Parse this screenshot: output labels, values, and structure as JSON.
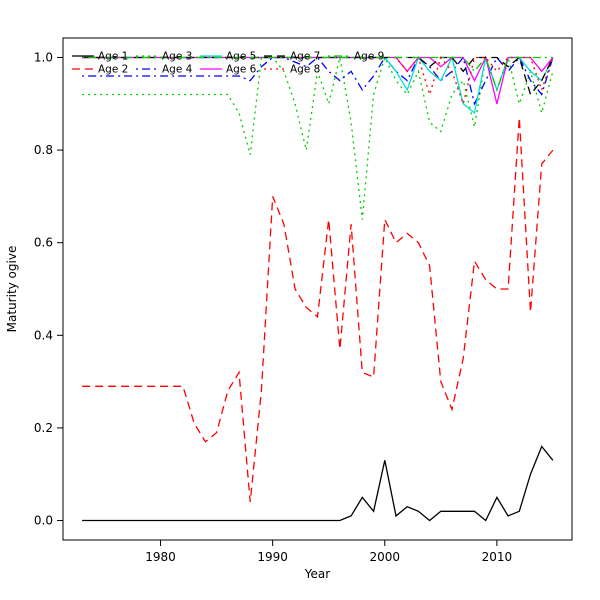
{
  "chart_data": {
    "type": "line",
    "title": "",
    "xlabel": "Year",
    "ylabel": "Maturity ogive",
    "xlim": [
      1971.3,
      2016.7
    ],
    "ylim": [
      -0.042,
      1.042
    ],
    "xticks": [
      1980,
      1990,
      2000,
      2010
    ],
    "yticks": [
      0.0,
      0.2,
      0.4,
      0.6,
      0.8,
      1.0
    ],
    "ytick_labels": [
      "0.0",
      "0.2",
      "0.4",
      "0.6",
      "0.8",
      "1.0"
    ],
    "grid": false,
    "legend": {
      "position": "top-left-inside",
      "columns": 5,
      "rows": 2,
      "layout": "column-major"
    },
    "x": [
      1973,
      1974,
      1975,
      1976,
      1977,
      1978,
      1979,
      1980,
      1981,
      1982,
      1983,
      1984,
      1985,
      1986,
      1987,
      1988,
      1989,
      1990,
      1991,
      1992,
      1993,
      1994,
      1995,
      1996,
      1997,
      1998,
      1999,
      2000,
      2001,
      2002,
      2003,
      2004,
      2005,
      2006,
      2007,
      2008,
      2009,
      2010,
      2011,
      2012,
      2013,
      2014,
      2015
    ],
    "series": [
      {
        "name": "Age 1",
        "color": "#000000",
        "lty": "solid",
        "values": [
          0,
          0,
          0,
          0,
          0,
          0,
          0,
          0,
          0,
          0,
          0,
          0,
          0,
          0,
          0,
          0,
          0,
          0,
          0,
          0,
          0,
          0,
          0,
          0,
          0.01,
          0.05,
          0.02,
          0.13,
          0.01,
          0.03,
          0.02,
          0,
          0.02,
          0.02,
          0.02,
          0.02,
          0,
          0.05,
          0.01,
          0.02,
          0.1,
          0.16,
          0.13
        ]
      },
      {
        "name": "Age 2",
        "color": "#FF0000",
        "lty": "dashed",
        "values": [
          0.29,
          0.29,
          0.29,
          0.29,
          0.29,
          0.29,
          0.29,
          0.29,
          0.29,
          0.29,
          0.21,
          0.17,
          0.19,
          0.28,
          0.32,
          0.04,
          0.28,
          0.7,
          0.64,
          0.5,
          0.46,
          0.44,
          0.65,
          0.37,
          0.64,
          0.32,
          0.31,
          0.65,
          0.6,
          0.62,
          0.6,
          0.55,
          0.3,
          0.24,
          0.35,
          0.56,
          0.52,
          0.5,
          0.5,
          0.87,
          0.45,
          0.77,
          0.8
        ]
      },
      {
        "name": "Age 3",
        "color": "#00CC00",
        "lty": "dotted",
        "values": [
          0.92,
          0.92,
          0.92,
          0.92,
          0.92,
          0.92,
          0.92,
          0.92,
          0.92,
          0.92,
          0.92,
          0.92,
          0.92,
          0.92,
          0.88,
          0.79,
          1.0,
          1.0,
          0.97,
          0.9,
          0.8,
          0.97,
          0.9,
          1.0,
          0.86,
          0.65,
          0.92,
          1.0,
          0.95,
          0.92,
          0.97,
          0.86,
          0.84,
          0.92,
          0.95,
          0.85,
          1.0,
          0.93,
          1.0,
          0.9,
          0.97,
          0.88,
          0.97
        ]
      },
      {
        "name": "Age 4",
        "color": "#0000FF",
        "lty": "dashdot",
        "values": [
          0.96,
          0.96,
          0.96,
          0.96,
          0.96,
          0.96,
          0.96,
          0.96,
          0.96,
          0.96,
          0.96,
          0.96,
          0.96,
          0.96,
          0.96,
          0.95,
          0.98,
          1.0,
          1.0,
          0.99,
          0.98,
          1.0,
          0.97,
          0.95,
          0.97,
          0.93,
          0.96,
          1.0,
          0.97,
          0.95,
          1.0,
          0.98,
          0.95,
          0.97,
          1.0,
          0.9,
          0.95,
          1.0,
          0.97,
          1.0,
          0.95,
          0.92,
          1.0
        ]
      },
      {
        "name": "Age 5",
        "color": "#00DDDD",
        "lty": "solid",
        "values": [
          1,
          1,
          1,
          1,
          1,
          1,
          1,
          1,
          1,
          1,
          1,
          1,
          1,
          1,
          1,
          1,
          1,
          1,
          1,
          1,
          1,
          1,
          1,
          1,
          1,
          1,
          1,
          1.0,
          0.97,
          0.93,
          1.0,
          0.97,
          0.95,
          1.0,
          0.9,
          0.88,
          1.0,
          0.93,
          1.0,
          1.0,
          0.97,
          0.95,
          1.0
        ]
      },
      {
        "name": "Age 6",
        "color": "#FF00FF",
        "lty": "solid",
        "values": [
          1,
          1,
          1,
          1,
          1,
          1,
          1,
          1,
          1,
          1,
          1,
          1,
          1,
          1,
          1,
          1,
          1,
          1,
          1,
          1,
          1,
          1,
          1,
          1,
          1,
          1,
          1,
          1,
          1.0,
          0.97,
          1.0,
          1.0,
          0.98,
          1.0,
          1.0,
          0.95,
          1.0,
          0.9,
          1.0,
          1.0,
          1.0,
          0.97,
          1.0
        ]
      },
      {
        "name": "Age 7",
        "color": "#000000",
        "lty": "dashed",
        "values": [
          1,
          1,
          1,
          1,
          1,
          1,
          1,
          1,
          1,
          1,
          1,
          1,
          1,
          1,
          1,
          1,
          1,
          1,
          1,
          1,
          1,
          1,
          1,
          1,
          1,
          1,
          1,
          1,
          1,
          1,
          1,
          0.98,
          1.0,
          1.0,
          0.97,
          1.0,
          1.0,
          1.0,
          0.98,
          1.0,
          0.92,
          0.95,
          1.0
        ]
      },
      {
        "name": "Age 8",
        "color": "#FF0000",
        "lty": "dotted",
        "values": [
          1,
          1,
          1,
          1,
          1,
          1,
          1,
          1,
          1,
          1,
          1,
          1,
          1,
          1,
          1,
          1,
          1,
          1,
          1,
          1,
          1,
          1,
          1,
          1,
          1,
          1,
          1,
          1,
          1,
          0.97,
          1.0,
          0.92,
          1.0,
          0.97,
          0.9,
          1.0,
          1.0,
          0.97,
          1.0,
          1.0,
          1.0,
          0.93,
          1.0
        ]
      },
      {
        "name": "Age 9",
        "color": "#00CC00",
        "lty": "dashdot",
        "values": [
          1,
          1,
          1,
          1,
          1,
          1,
          1,
          1,
          1,
          1,
          1,
          1,
          1,
          1,
          1,
          1,
          1,
          1,
          1,
          1,
          1,
          1,
          1,
          1,
          1,
          1,
          1,
          1,
          1,
          1,
          1,
          1,
          1,
          1,
          1,
          0.97,
          1.0,
          0.93,
          1.0,
          1.0,
          1.0,
          1.0,
          1.0
        ]
      }
    ]
  }
}
